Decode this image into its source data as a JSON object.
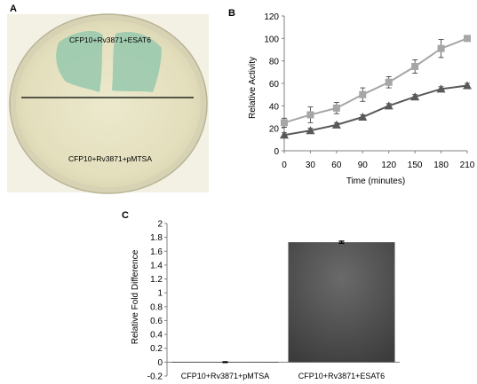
{
  "panels": {
    "a": {
      "label": "A",
      "top_streak_label": "CFP10+Rv3871+ESAT6",
      "bottom_streak_label": "CFP10+Rv3871+pMTSA"
    },
    "b": {
      "label": "B"
    },
    "c": {
      "label": "C"
    }
  },
  "colors": {
    "plate_agar": "#e6e2c2",
    "plate_rim": "#cdc9a8",
    "blue_colonies": "#8ec2a8",
    "background": "#f2efe3",
    "series_light": "#a6a6a6",
    "series_dark": "#595959",
    "bar": "#505050"
  },
  "chart_data": [
    {
      "id": "B",
      "type": "line",
      "xlabel": "Time  (minutes)",
      "ylabel": "Relative Activity",
      "x": [
        0,
        30,
        60,
        90,
        120,
        150,
        180,
        210
      ],
      "xlim": [
        0,
        210
      ],
      "ylim": [
        0,
        120
      ],
      "yticks": [
        0,
        20,
        40,
        60,
        80,
        100,
        120
      ],
      "grid": false,
      "legend": false,
      "series": [
        {
          "marker": "square",
          "color": "#a6a6a6",
          "values": [
            25,
            32,
            38,
            50,
            61,
            75,
            91,
            100
          ],
          "errors": [
            4,
            7,
            5,
            6,
            5,
            6,
            8,
            0
          ]
        },
        {
          "marker": "triangle",
          "color": "#595959",
          "values": [
            14,
            18,
            23,
            30,
            40,
            48,
            55,
            58
          ],
          "errors": [
            2,
            2,
            2,
            2,
            2,
            2,
            2,
            2
          ]
        }
      ]
    },
    {
      "id": "C",
      "type": "bar",
      "ylabel": "Relative Fold Difference",
      "categories": [
        "CFP10+Rv3871+pMTSA",
        "CFP10+Rv3871+ESAT6"
      ],
      "values": [
        0,
        1.73
      ],
      "errors": [
        0.005,
        0.015
      ],
      "ylim": [
        -0.2,
        2
      ],
      "yticks": [
        -0.2,
        0,
        0.2,
        0.4,
        0.6,
        0.8,
        1,
        1.2,
        1.4,
        1.6,
        1.8,
        2
      ],
      "grid": false,
      "legend": false
    }
  ]
}
